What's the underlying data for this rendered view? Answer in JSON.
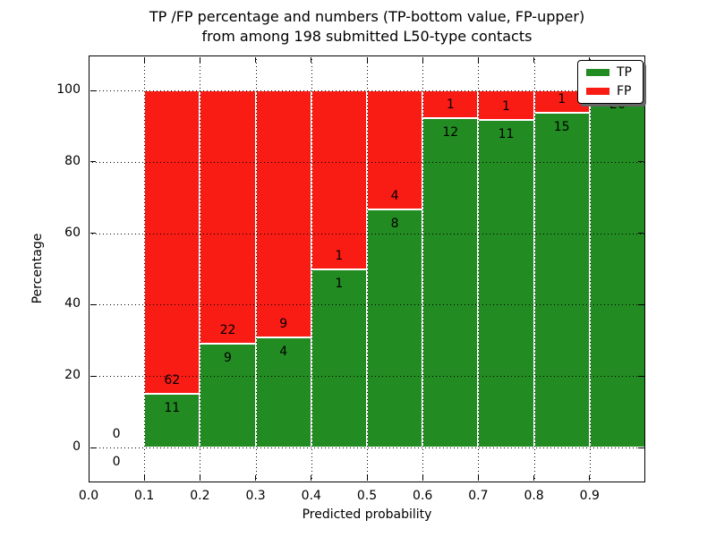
{
  "chart_data": {
    "type": "bar",
    "stacked": true,
    "title": "TP /FP percentage and numbers (TP-bottom value, FP-upper) from among 198 submitted L50-type contacts",
    "title_lines": [
      "TP /FP percentage and numbers (TP-bottom value, FP-upper)",
      "from among 198 submitted L50-type contacts"
    ],
    "xlabel": "Predicted probability",
    "ylabel": "Percentage",
    "total_contacts": 198,
    "xlim": [
      0.0,
      1.0
    ],
    "ylim_pct": [
      -9.5,
      110
    ],
    "xticks": [
      "0.0",
      "0.1",
      "0.2",
      "0.3",
      "0.4",
      "0.5",
      "0.6",
      "0.7",
      "0.8",
      "0.9"
    ],
    "xtick_values": [
      0.0,
      0.1,
      0.2,
      0.3,
      0.4,
      0.5,
      0.6,
      0.7,
      0.8,
      0.9
    ],
    "yticks": [
      0,
      20,
      40,
      60,
      80,
      100
    ],
    "grid": true,
    "grid_style": "dotted",
    "legend_position": "upper right",
    "series": [
      {
        "name": "TP",
        "color": "#228b22"
      },
      {
        "name": "FP",
        "color": "#f81c14"
      }
    ],
    "bar_edge_color": "#ffffff",
    "bins": [
      {
        "x_start": 0.0,
        "x_end": 0.1,
        "tp_count": 0,
        "fp_count": 0,
        "tp_pct": 0,
        "fp_pct": 0,
        "fp_label": "0",
        "tp_label": "0"
      },
      {
        "x_start": 0.1,
        "x_end": 0.2,
        "tp_count": 11,
        "fp_count": 62,
        "tp_pct": 15.068,
        "fp_pct": 84.932,
        "fp_label": "62",
        "tp_label": "11"
      },
      {
        "x_start": 0.2,
        "x_end": 0.3,
        "tp_count": 9,
        "fp_count": 22,
        "tp_pct": 29.032,
        "fp_pct": 70.968,
        "fp_label": "22",
        "tp_label": "9"
      },
      {
        "x_start": 0.3,
        "x_end": 0.4,
        "tp_count": 4,
        "fp_count": 9,
        "tp_pct": 30.769,
        "fp_pct": 69.231,
        "fp_label": "9",
        "tp_label": "4"
      },
      {
        "x_start": 0.4,
        "x_end": 0.5,
        "tp_count": 1,
        "fp_count": 1,
        "tp_pct": 50,
        "fp_pct": 50,
        "fp_label": "1",
        "tp_label": "1"
      },
      {
        "x_start": 0.5,
        "x_end": 0.6,
        "tp_count": 8,
        "fp_count": 4,
        "tp_pct": 66.667,
        "fp_pct": 33.333,
        "fp_label": "4",
        "tp_label": "8"
      },
      {
        "x_start": 0.6,
        "x_end": 0.7,
        "tp_count": 12,
        "fp_count": 1,
        "tp_pct": 92.308,
        "fp_pct": 7.692,
        "fp_label": "1",
        "tp_label": "12"
      },
      {
        "x_start": 0.7,
        "x_end": 0.8,
        "tp_count": 11,
        "fp_count": 1,
        "tp_pct": 91.667,
        "fp_pct": 8.333,
        "fp_label": "1",
        "tp_label": "11"
      },
      {
        "x_start": 0.8,
        "x_end": 0.9,
        "tp_count": 15,
        "fp_count": 1,
        "tp_pct": 93.75,
        "fp_pct": 6.25,
        "fp_label": "1",
        "tp_label": "15"
      },
      {
        "x_start": 0.9,
        "x_end": 1.0,
        "tp_count": 26,
        "fp_count": 0,
        "tp_pct": 100,
        "fp_pct": 0,
        "fp_label": null,
        "tp_label": "26"
      }
    ]
  }
}
